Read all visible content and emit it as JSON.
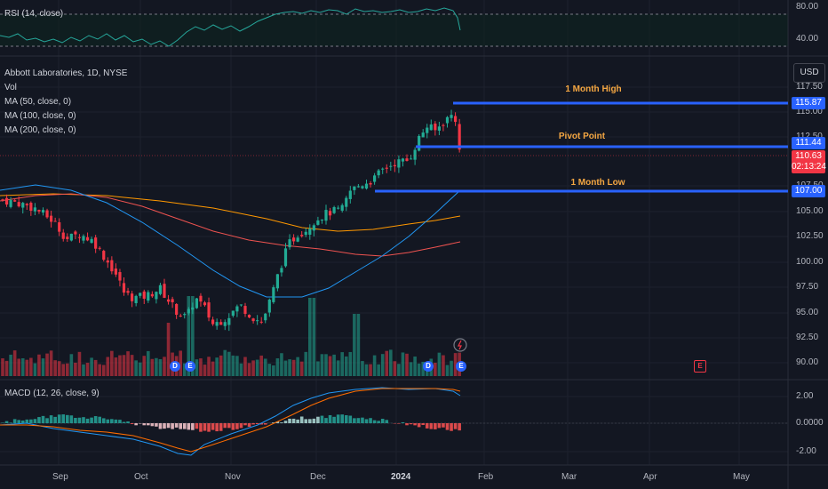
{
  "rsi_panel": {
    "title": "RSI (14, close)",
    "scale": [
      "80.00",
      "40.00"
    ]
  },
  "main_panel": {
    "title": "Abbott Laboratories, 1D, NYSE",
    "indicators": [
      "Vol",
      "MA (50, close, 0)",
      "MA (100, close, 0)",
      "MA (200, close, 0)"
    ],
    "currency": "USD"
  },
  "price_scale": [
    "117.50",
    "115.00",
    "112.50",
    "107.50",
    "105.00",
    "102.50",
    "100.00",
    "97.50",
    "95.00",
    "92.50",
    "90.00"
  ],
  "price_tags": {
    "high": "115.87",
    "pivot": "111.44",
    "last": "110.63",
    "countdown": "02:13:24",
    "low": "107.00"
  },
  "levels": {
    "high_label": "1 Month High",
    "pivot_label": "Pivot Point",
    "low_label": "1 Month Low"
  },
  "macd_panel": {
    "title": "MACD (12, 26, close, 9)",
    "scale": [
      "2.00",
      "0.0000",
      "-2.00"
    ]
  },
  "time_axis": [
    "Sep",
    "Oct",
    "Nov",
    "Dec",
    "2024",
    "Feb",
    "Mar",
    "Apr",
    "May"
  ],
  "events": {
    "dividend": "D",
    "earnings": "E"
  },
  "colors": {
    "bg": "#131722",
    "up": "#22ab94",
    "down": "#f23645",
    "level_line": "#2962ff",
    "ma50": "#2196f3",
    "ma100": "#ef5350",
    "ma200": "#ff9800",
    "rsi_line": "#26a69a",
    "level_label": "#f5a742"
  },
  "chart_data": {
    "type": "candlestick",
    "price_range": [
      89.0,
      118.5
    ],
    "key_levels": {
      "one_month_high": 115.87,
      "pivot_point": 111.44,
      "last": 110.63,
      "one_month_low": 107.0
    },
    "ma_end_values": {
      "ma50": 107.0,
      "ma100": 101.9,
      "ma200": 104.6
    }
  }
}
